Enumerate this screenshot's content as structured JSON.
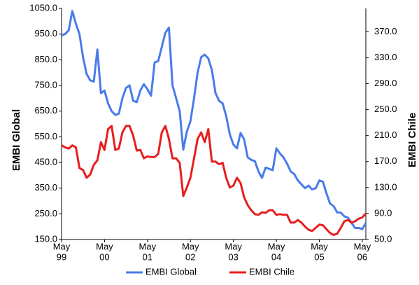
{
  "chart_data": {
    "type": "line",
    "y_label": "EMBI Global",
    "y2_label": "EMBI Chile",
    "x": [
      "1999-05",
      "1999-06",
      "1999-07",
      "1999-08",
      "1999-09",
      "1999-10",
      "1999-11",
      "1999-12",
      "2000-01",
      "2000-02",
      "2000-03",
      "2000-04",
      "2000-05",
      "2000-06",
      "2000-07",
      "2000-08",
      "2000-09",
      "2000-10",
      "2000-11",
      "2000-12",
      "2001-01",
      "2001-02",
      "2001-03",
      "2001-04",
      "2001-05",
      "2001-06",
      "2001-07",
      "2001-08",
      "2001-09",
      "2001-10",
      "2001-11",
      "2001-12",
      "2002-01",
      "2002-02",
      "2002-03",
      "2002-04",
      "2002-05",
      "2002-06",
      "2002-07",
      "2002-08",
      "2002-09",
      "2002-10",
      "2002-11",
      "2002-12",
      "2003-01",
      "2003-02",
      "2003-03",
      "2003-04",
      "2003-05",
      "2003-06",
      "2003-07",
      "2003-08",
      "2003-09",
      "2003-10",
      "2003-11",
      "2003-12",
      "2004-01",
      "2004-02",
      "2004-03",
      "2004-04",
      "2004-05",
      "2004-06",
      "2004-07",
      "2004-08",
      "2004-09",
      "2004-10",
      "2004-11",
      "2004-12",
      "2005-01",
      "2005-02",
      "2005-03",
      "2005-04",
      "2005-05",
      "2005-06",
      "2005-07",
      "2005-08",
      "2005-09",
      "2005-10",
      "2005-11",
      "2005-12",
      "2006-01",
      "2006-02",
      "2006-03",
      "2006-04",
      "2006-05",
      "2006-06"
    ],
    "xlim": [
      "1999-05",
      "2006-06"
    ],
    "xticks": [
      {
        "value": "1999-05",
        "label": [
          "May",
          "99"
        ]
      },
      {
        "value": "2000-05",
        "label": [
          "May",
          "00"
        ]
      },
      {
        "value": "2001-05",
        "label": [
          "May",
          "01"
        ]
      },
      {
        "value": "2002-05",
        "label": [
          "May",
          "02"
        ]
      },
      {
        "value": "2003-05",
        "label": [
          "May",
          "03"
        ]
      },
      {
        "value": "2004-05",
        "label": [
          "May",
          "04"
        ]
      },
      {
        "value": "2005-05",
        "label": [
          "May",
          "05"
        ]
      },
      {
        "value": "2006-05",
        "label": [
          "May",
          "06"
        ]
      }
    ],
    "ylim": [
      150,
      1050
    ],
    "yticks": [
      {
        "value": 150,
        "label": "150.0"
      },
      {
        "value": 250,
        "label": "250.0"
      },
      {
        "value": 350,
        "label": "350.0"
      },
      {
        "value": 450,
        "label": "450.0"
      },
      {
        "value": 550,
        "label": "550.0"
      },
      {
        "value": 650,
        "label": "650.0"
      },
      {
        "value": 750,
        "label": "750.0"
      },
      {
        "value": 850,
        "label": "850.0"
      },
      {
        "value": 950,
        "label": "950.0"
      },
      {
        "value": 1050,
        "label": "1050.0"
      }
    ],
    "y2lim": [
      50,
      406
    ],
    "y2ticks": [
      {
        "value": 50,
        "label": "50.0"
      },
      {
        "value": 90,
        "label": "90.0"
      },
      {
        "value": 130,
        "label": "130.0"
      },
      {
        "value": 170,
        "label": "170.0"
      },
      {
        "value": 210,
        "label": "210.0"
      },
      {
        "value": 250,
        "label": "250.0"
      },
      {
        "value": 290,
        "label": "290.0"
      },
      {
        "value": 330,
        "label": "330.0"
      },
      {
        "value": 370,
        "label": "370.0"
      }
    ],
    "legend": "bottom",
    "series": [
      {
        "name": "EMBI Global",
        "color": "#4a7bea",
        "values": [
          945,
          950,
          965,
          1040,
          990,
          950,
          860,
          795,
          770,
          765,
          890,
          720,
          730,
          680,
          650,
          635,
          640,
          700,
          740,
          750,
          690,
          685,
          730,
          755,
          735,
          710,
          840,
          845,
          900,
          955,
          975,
          750,
          700,
          650,
          500,
          570,
          610,
          700,
          800,
          860,
          870,
          855,
          810,
          720,
          690,
          680,
          630,
          560,
          520,
          505,
          565,
          540,
          470,
          460,
          455,
          415,
          390,
          430,
          425,
          420,
          505,
          485,
          470,
          445,
          415,
          405,
          380,
          365,
          350,
          360,
          345,
          350,
          380,
          375,
          330,
          290,
          280,
          255,
          255,
          240,
          235,
          215,
          195,
          195,
          190,
          215
        ]
      },
      {
        "name": "EMBI Chile",
        "color": "#e81e1e",
        "axis": "y2",
        "values": [
          195,
          192,
          190,
          195,
          192,
          160,
          157,
          145,
          150,
          165,
          172,
          200,
          188,
          220,
          225,
          188,
          190,
          215,
          225,
          225,
          210,
          187,
          188,
          175,
          178,
          177,
          177,
          182,
          215,
          225,
          205,
          175,
          175,
          168,
          117,
          130,
          145,
          175,
          205,
          215,
          200,
          220,
          170,
          170,
          166,
          168,
          145,
          130,
          133,
          145,
          137,
          115,
          103,
          95,
          89,
          88,
          92,
          91,
          95,
          95,
          88,
          89,
          88,
          88,
          76,
          76,
          80,
          76,
          70,
          65,
          63,
          68,
          73,
          72,
          66,
          60,
          57,
          59,
          68,
          78,
          80,
          76,
          78,
          82,
          84,
          90
        ]
      }
    ]
  }
}
